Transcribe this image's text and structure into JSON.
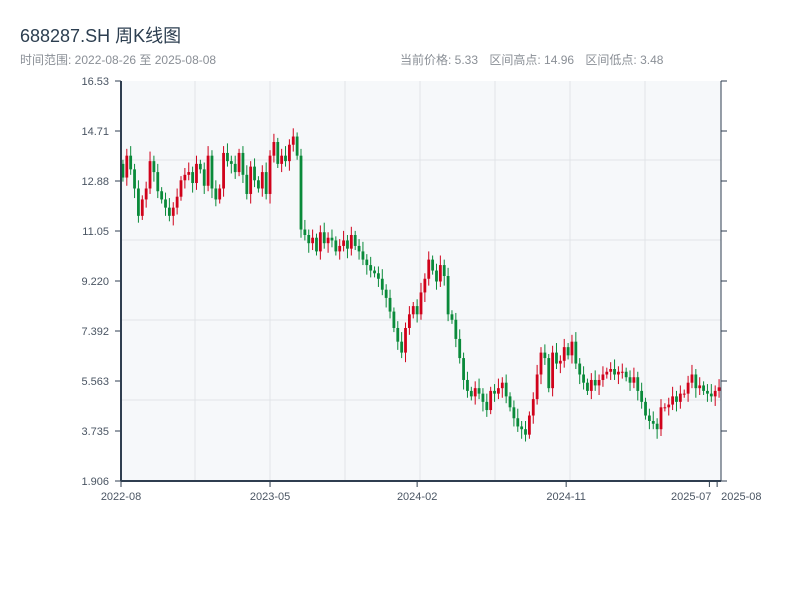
{
  "header": {
    "title": "688287.SH 周K线图",
    "range_text": "时间范围: 2022-08-26 至 2025-08-08",
    "current_price": "当前价格: 5.33",
    "range_high": "区间高点: 14.96",
    "range_low": "区间低点: 3.48"
  },
  "chart_data": {
    "type": "candlestick",
    "title": "688287.SH 周K线图",
    "start_date": "2022-08-26",
    "end_date": "2025-08-08",
    "ylim": [
      1.906,
      16.53
    ],
    "yticks": [
      "16.53",
      "14.71",
      "12.88",
      "11.05",
      "9.220",
      "7.392",
      "5.563",
      "3.735",
      "1.906"
    ],
    "xticks": [
      {
        "label": "2022-08",
        "index": 0
      },
      {
        "label": "2023-05",
        "index": 38.5
      },
      {
        "label": "2024-02",
        "index": 76.5
      },
      {
        "label": "2024-11",
        "index": 115
      },
      {
        "label": "2025-07",
        "index": 152
      },
      {
        "label": "2025-08",
        "index": 154
      }
    ],
    "up_color": "#d0021b",
    "down_color": "#0a8a3a",
    "first_open": 13.5,
    "close": [
      13.0,
      13.8,
      13.3,
      12.6,
      11.6,
      12.2,
      12.6,
      13.6,
      13.2,
      12.5,
      12.2,
      11.9,
      11.6,
      11.9,
      12.3,
      12.9,
      13.1,
      13.2,
      12.8,
      13.5,
      13.3,
      12.7,
      13.8,
      12.6,
      12.2,
      12.6,
      13.9,
      13.6,
      13.5,
      13.2,
      13.9,
      13.1,
      12.4,
      13.4,
      12.9,
      12.6,
      13.2,
      12.4,
      13.8,
      14.3,
      13.5,
      13.8,
      13.6,
      14.2,
      14.5,
      13.8,
      11.1,
      10.9,
      10.6,
      10.8,
      10.3,
      11.0,
      10.6,
      10.8,
      10.7,
      10.3,
      10.5,
      10.7,
      10.4,
      10.9,
      10.5,
      10.3,
      10.0,
      9.8,
      9.6,
      9.5,
      9.3,
      8.9,
      8.6,
      8.1,
      7.5,
      7.0,
      6.6,
      7.5,
      8.0,
      8.3,
      8.0,
      8.8,
      9.3,
      10.0,
      9.6,
      9.2,
      9.8,
      9.4,
      8.0,
      7.8,
      7.1,
      6.4,
      5.6,
      5.2,
      5.0,
      5.3,
      5.1,
      4.8,
      4.5,
      5.2,
      5.1,
      5.3,
      5.5,
      5.0,
      4.6,
      4.2,
      3.9,
      3.8,
      3.6,
      4.3,
      4.9,
      5.8,
      6.6,
      6.4,
      5.3,
      6.6,
      6.2,
      6.3,
      6.8,
      6.5,
      7.0,
      6.2,
      5.8,
      5.5,
      5.2,
      5.6,
      5.4,
      5.6,
      5.8,
      5.9,
      6.0,
      5.8,
      5.9,
      5.9,
      5.7,
      5.5,
      5.7,
      5.2,
      4.8,
      4.3,
      4.1,
      4.0,
      3.8,
      4.6,
      4.6,
      4.7,
      5.0,
      4.8,
      5.1,
      5.1,
      5.5,
      5.8,
      5.3,
      5.4,
      5.2,
      5.1,
      5.0,
      5.2,
      5.33
    ]
  }
}
